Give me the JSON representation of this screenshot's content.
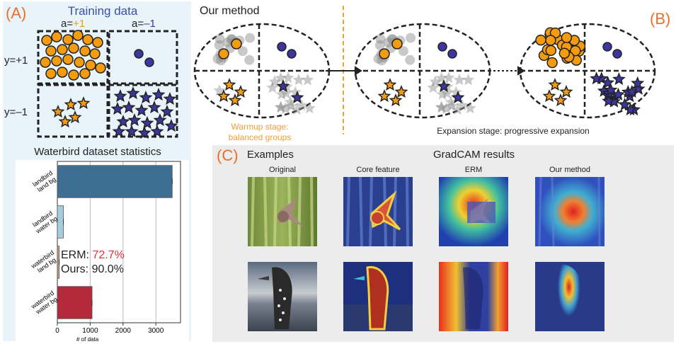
{
  "panel_a": {
    "letter": "(A)",
    "title": "Training data",
    "col_labels": [
      {
        "prefix": "a=",
        "value": "+1",
        "value_color": "#f39c12"
      },
      {
        "prefix": "a=",
        "value": "–1",
        "value_color": "#3d35a0"
      }
    ],
    "row_labels": [
      "y=+1",
      "y=–1"
    ],
    "stats_title": "Waterbird dataset statistics"
  },
  "chart_data": {
    "type": "bar",
    "orientation": "horizontal",
    "categories": [
      "landbird land bg",
      "landbird water bg",
      "waterbird land bg",
      "waterbird water bg"
    ],
    "category_lines": [
      [
        "landbird",
        "land bg"
      ],
      [
        "landbird",
        "water bg"
      ],
      [
        "waterbird",
        "land bg"
      ],
      [
        "waterbird",
        "water bg"
      ]
    ],
    "values": [
      3498,
      184,
      56,
      1057
    ],
    "colors": [
      "#3f6e93",
      "#a6cddd",
      "#c9a27a",
      "#b52a3a"
    ],
    "xlim": [
      0,
      3750
    ],
    "xticks": [
      0,
      1000,
      2000,
      3000
    ],
    "xlabel": "# of data",
    "grid": true,
    "annotation": {
      "erm_label": "ERM: ",
      "erm_value": "72.7%",
      "erm_color": "#e0303a",
      "ours_label": "Ours: ",
      "ours_value": "90.0%"
    }
  },
  "panel_b": {
    "letter": "(B)",
    "title": "Our method",
    "warmup_caption": [
      "Warmup stage:",
      "balanced groups"
    ],
    "expansion_caption": "Expansion stage: progressive expansion"
  },
  "panel_c": {
    "letter": "(C)",
    "examples_label": "Examples",
    "gradcam_label": "GradCAM results",
    "columns": [
      "Original",
      "Core feature",
      "ERM",
      "Our method"
    ]
  },
  "colors": {
    "orange": "#f39c12",
    "purple": "#3d35a0",
    "accent": "#e8702a",
    "title_blue": "#3a4fa8"
  }
}
